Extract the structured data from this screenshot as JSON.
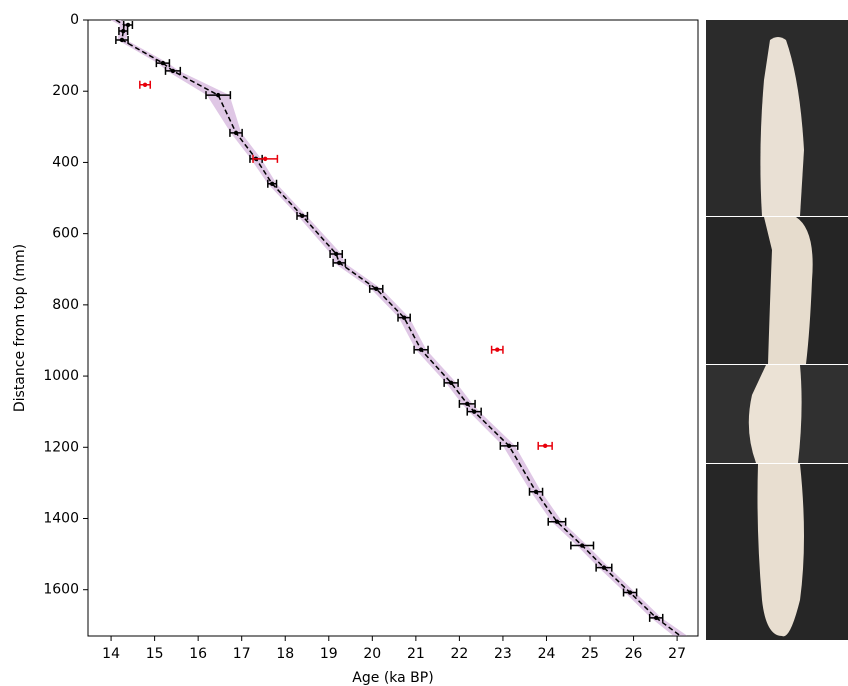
{
  "chart_data": {
    "type": "errorbar-scatter",
    "xlabel": "Age (ka BP)",
    "ylabel": "Distance from top (mm)",
    "xlim": [
      13.47,
      27.48
    ],
    "ylim": [
      0,
      1730
    ],
    "y_inverted": true,
    "xticks": [
      14,
      15,
      16,
      17,
      18,
      19,
      20,
      21,
      22,
      23,
      24,
      25,
      26,
      27
    ],
    "yticks": [
      0,
      200,
      400,
      600,
      800,
      1000,
      1200,
      1400,
      1600
    ],
    "points": {
      "color": "#000000",
      "x": [
        14.39,
        14.28,
        14.25,
        15.19,
        15.42,
        16.46,
        16.87,
        17.33,
        17.7,
        18.39,
        19.17,
        19.24,
        20.09,
        20.73,
        21.12,
        21.81,
        22.18,
        22.34,
        23.14,
        23.76,
        24.24,
        24.82,
        25.32,
        25.92,
        26.52
      ],
      "y": [
        14,
        31,
        56,
        121,
        143,
        211,
        317,
        390,
        460,
        550,
        657,
        682,
        755,
        836,
        926,
        1019,
        1078,
        1100,
        1196,
        1325,
        1409,
        1476,
        1538,
        1608,
        1679
      ],
      "xerr": [
        0.1,
        0.1,
        0.14,
        0.15,
        0.17,
        0.28,
        0.14,
        0.14,
        0.1,
        0.12,
        0.14,
        0.14,
        0.15,
        0.14,
        0.16,
        0.16,
        0.18,
        0.16,
        0.2,
        0.15,
        0.2,
        0.26,
        0.18,
        0.15,
        0.15
      ]
    },
    "outliers": {
      "color": "#e8000b",
      "x": [
        14.78,
        17.54,
        22.87,
        23.97
      ],
      "y": [
        182,
        390,
        926,
        1196
      ],
      "xerr": [
        0.12,
        0.28,
        0.13,
        0.16
      ]
    },
    "model": {
      "line_color": "#000000",
      "band_color": "#d9bde0",
      "x": [
        14.11,
        14.3,
        14.28,
        14.25,
        15.19,
        15.42,
        16.46,
        16.87,
        17.33,
        17.7,
        18.39,
        19.17,
        19.24,
        20.09,
        20.73,
        21.12,
        21.81,
        22.18,
        22.34,
        23.14,
        23.76,
        24.24,
        24.82,
        25.32,
        25.92,
        26.52,
        27.07
      ],
      "y": [
        0,
        14,
        31,
        56,
        121,
        143,
        211,
        317,
        390,
        460,
        550,
        657,
        682,
        755,
        836,
        926,
        1019,
        1078,
        1100,
        1196,
        1325,
        1409,
        1476,
        1538,
        1608,
        1679,
        1729
      ],
      "halfwidth": [
        0.12,
        0.1,
        0.1,
        0.1,
        0.12,
        0.14,
        0.26,
        0.12,
        0.12,
        0.1,
        0.1,
        0.12,
        0.12,
        0.12,
        0.12,
        0.12,
        0.12,
        0.12,
        0.12,
        0.14,
        0.12,
        0.12,
        0.12,
        0.12,
        0.12,
        0.12,
        0.16
      ]
    }
  }
}
